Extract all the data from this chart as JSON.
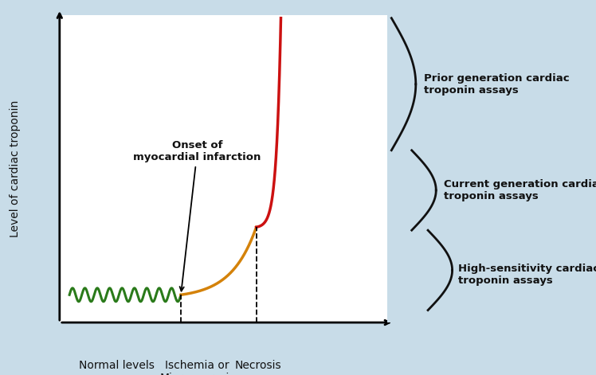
{
  "background_color": "#c8dce8",
  "plot_bg_color": "#ffffff",
  "ylabel": "Level of cardiac troponin",
  "xlabel_labels": [
    "Normal levels",
    "Ischemia or\nMicronecrosis",
    "Necrosis"
  ],
  "xlabel_positions_fig": [
    0.175,
    0.42,
    0.605
  ],
  "annotation_onset": "Onset of\nmyocardial infarction",
  "green_color": "#2a7a1a",
  "orange_color": "#d4820a",
  "red_color": "#cc1111",
  "bracket_color": "#111111",
  "text_prior": "Prior generation cardiac\ntroponin assays",
  "text_current": "Current generation cardiac\ntroponin assays",
  "text_high": "High-sensitivity cardiac\ntroponin assays",
  "text_color": "#111111",
  "font_size_labels": 10,
  "font_size_annotations": 9.5,
  "font_size_ylabel": 10
}
